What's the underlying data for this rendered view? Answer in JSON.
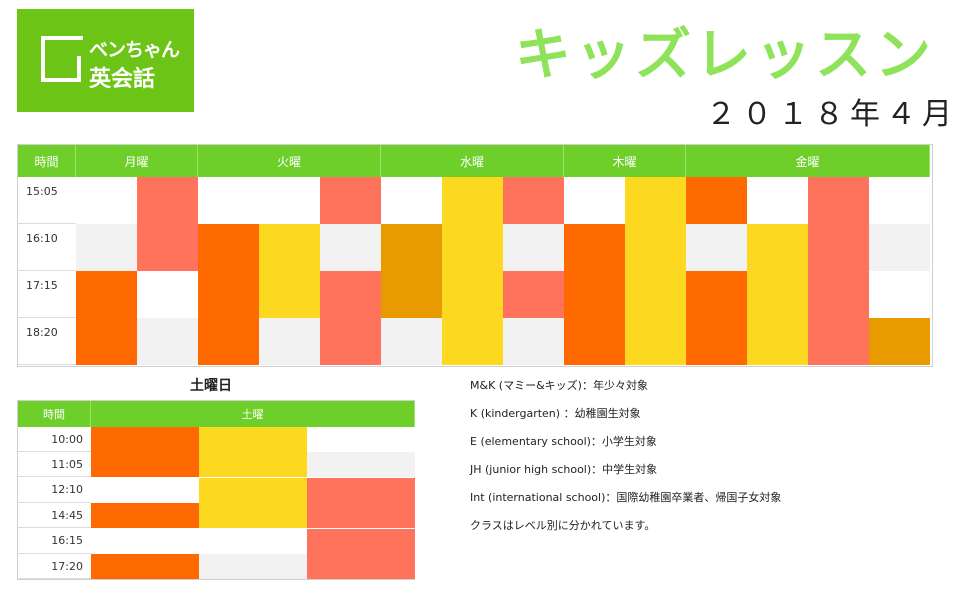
{
  "logo": {
    "line1": "ベンちゃん",
    "line2": "英会話"
  },
  "title": "キッズレッスン",
  "month": "２０１８年４月",
  "colors": {
    "brand": "#6cc417",
    "header": "#6ecf2a",
    "orange": "#ff6a00",
    "yellow": "#fdd820",
    "salmon": "#ff735c",
    "dark_gold": "#e89b00",
    "gray": "#f2f2f2",
    "white": "#ffffff"
  },
  "weekday": {
    "time_header": "時間",
    "days": [
      {
        "label": "月曜",
        "cols": 2
      },
      {
        "label": "火曜",
        "cols": 3
      },
      {
        "label": "水曜",
        "cols": 3
      },
      {
        "label": "木曜",
        "cols": 2
      },
      {
        "label": "金曜",
        "cols": 4
      }
    ],
    "times": [
      "15:05",
      "16:10",
      "17:15",
      "18:20"
    ],
    "grid": [
      [
        "w",
        "r",
        "w",
        "w",
        "r",
        "w",
        "y",
        "r",
        "w",
        "y",
        "o",
        "w",
        "r",
        "w"
      ],
      [
        "g",
        "r",
        "o",
        "y",
        "g",
        "d",
        "y",
        "g",
        "o",
        "y",
        "g",
        "y",
        "r",
        "g"
      ],
      [
        "o",
        "w",
        "o",
        "y",
        "r",
        "d",
        "y",
        "r",
        "o",
        "y",
        "o",
        "y",
        "r",
        "w"
      ],
      [
        "o",
        "g",
        "o",
        "g",
        "r",
        "g",
        "y",
        "g",
        "o",
        "y",
        "o",
        "y",
        "r",
        "d"
      ]
    ]
  },
  "saturday": {
    "title": "土曜日",
    "time_header": "時間",
    "day_header": "土曜",
    "times": [
      "10:00",
      "11:05",
      "12:10",
      "14:45",
      "16:15",
      "17:20"
    ],
    "grid": [
      [
        "o",
        "y",
        "w"
      ],
      [
        "o",
        "y",
        "g"
      ],
      [
        "w",
        "y",
        "r"
      ],
      [
        "o",
        "y",
        "r"
      ],
      [
        "w",
        "w",
        "r"
      ],
      [
        "o",
        "g",
        "r"
      ]
    ]
  },
  "legend": [
    "M&K (マミー&キッズ)：年少々対象",
    "K (kindergarten) ：幼稚園生対象",
    "E (elementary school)：小学生対象",
    "JH (junior high school)：中学生対象",
    "Int (international school)：国際幼稚園卒業者、帰国子女対象",
    "クラスはレベル別に分かれています。"
  ]
}
